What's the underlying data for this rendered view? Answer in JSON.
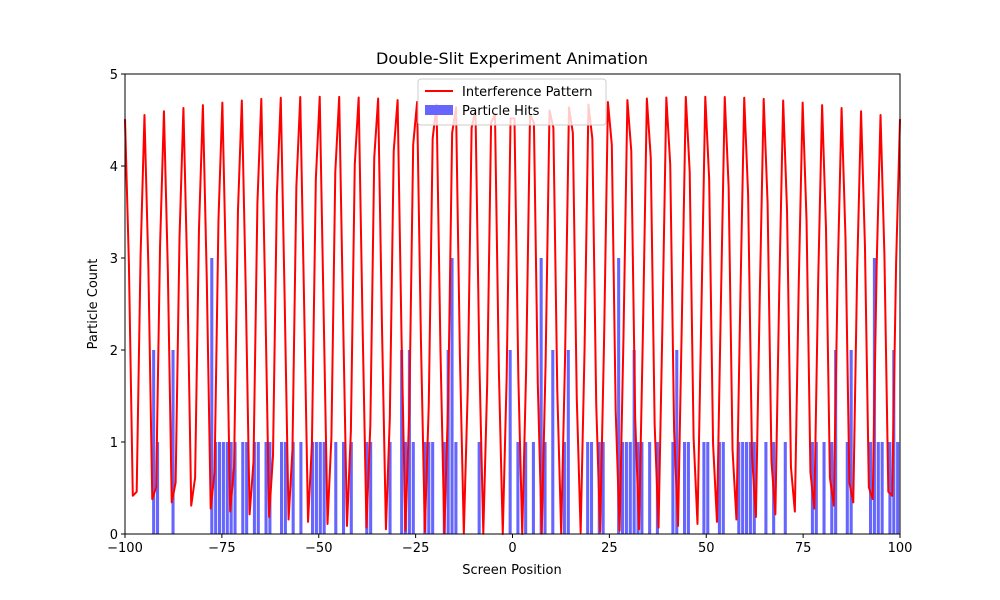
{
  "chart_data": {
    "type": "bar+line",
    "title": "Double-Slit Experiment Animation",
    "xlabel": "Screen Position",
    "ylabel": "Particle Count",
    "xlim": [
      -100,
      100
    ],
    "ylim": [
      0,
      5
    ],
    "xticks": [
      -100,
      -75,
      -50,
      -25,
      0,
      25,
      50,
      75,
      100
    ],
    "xtick_labels": [
      "−100",
      "−75",
      "−50",
      "−25",
      "0",
      "25",
      "50",
      "75",
      "100"
    ],
    "yticks": [
      0,
      1,
      2,
      3,
      4,
      5
    ],
    "ytick_labels": [
      "0",
      "1",
      "2",
      "3",
      "4",
      "5"
    ],
    "grid": false,
    "legend_position": "top-center",
    "legend": [
      {
        "label": "Interference Pattern",
        "kind": "line",
        "color": "#ff0000"
      },
      {
        "label": "Particle Hits",
        "kind": "bar",
        "color": "#6666ff"
      }
    ],
    "line": {
      "name": "Interference Pattern",
      "color": "#ff0000",
      "description": "cos^2 fringe pattern with Gaussian envelope",
      "peak": 5,
      "envelope_sigma": 220,
      "fringe_period": 5,
      "x_start": -100,
      "x_end": 100,
      "n_points": 200
    },
    "bars": {
      "name": "Particle Hits",
      "color": "#6666ff",
      "bin_width": 1,
      "x": [
        -93,
        -92,
        -88,
        -78,
        -77,
        -76,
        -75,
        -74,
        -73,
        -72,
        -70,
        -69,
        -67,
        -66,
        -64,
        -63,
        -60,
        -59,
        -57,
        -55,
        -52,
        -51,
        -50,
        -49,
        -46,
        -44,
        -42,
        -38,
        -37,
        -32,
        -29,
        -28,
        -27,
        -26,
        -23,
        -22,
        -21,
        -18,
        -17,
        -16,
        -15,
        -9,
        -1,
        1,
        3,
        5,
        7,
        8,
        10,
        13,
        14,
        19,
        20,
        22,
        23,
        27,
        28,
        29,
        30,
        31,
        32,
        33,
        35,
        37,
        41,
        42,
        44,
        45,
        49,
        50,
        53,
        54,
        58,
        59,
        60,
        61,
        62,
        65,
        67,
        70,
        77,
        78,
        80,
        82,
        83,
        86,
        87,
        92,
        93,
        94,
        95,
        97,
        98,
        99
      ],
      "y": [
        2,
        1,
        2,
        3,
        1,
        1,
        1,
        1,
        1,
        1,
        1,
        1,
        1,
        1,
        1,
        1,
        1,
        1,
        1,
        1,
        1,
        1,
        1,
        1,
        1,
        1,
        1,
        1,
        1,
        1,
        2,
        1,
        2,
        1,
        1,
        1,
        1,
        1,
        2,
        3,
        1,
        1,
        2,
        1,
        1,
        1,
        3,
        1,
        2,
        1,
        2,
        1,
        1,
        1,
        1,
        3,
        1,
        1,
        1,
        2,
        1,
        1,
        1,
        1,
        1,
        2,
        1,
        1,
        1,
        1,
        1,
        1,
        1,
        1,
        1,
        1,
        1,
        1,
        1,
        1,
        1,
        1,
        1,
        1,
        2,
        1,
        2,
        1,
        3,
        1,
        1,
        1,
        2,
        1
      ]
    }
  }
}
